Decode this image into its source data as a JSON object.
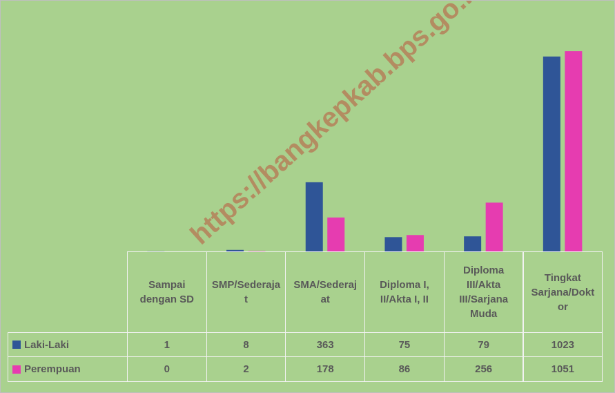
{
  "chart_data": {
    "type": "bar",
    "categories": [
      "Sampai dengan SD",
      "SMP/Sederajat",
      "SMA/Sederajat",
      "Diploma I, II/Akta I, II",
      "Diploma III/Akta III/Sarjana Muda",
      "Tingkat Sarjana/Doktor"
    ],
    "series": [
      {
        "name": "Laki-Laki",
        "color": "#2f5597",
        "values": [
          1,
          8,
          363,
          75,
          79,
          1023
        ]
      },
      {
        "name": "Perempuan",
        "color": "#e63cb0",
        "values": [
          0,
          2,
          178,
          86,
          256,
          1051
        ]
      }
    ],
    "ylim": [
      0,
      1200
    ],
    "watermark": "https://bangkepkab.bps.go.id"
  }
}
